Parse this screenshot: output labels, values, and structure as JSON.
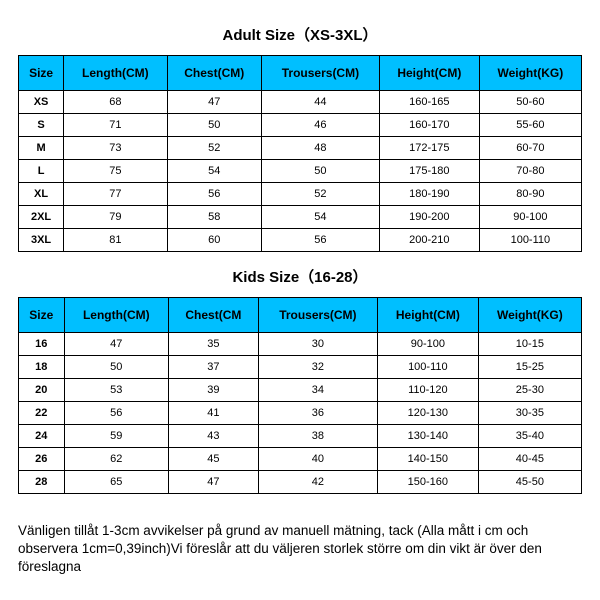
{
  "adult": {
    "title": "Adult Size（XS-3XL）",
    "columns": [
      "Size",
      "Length(CM)",
      "Chest(CM)",
      "Trousers(CM)",
      "Height(CM)",
      "Weight(KG)"
    ],
    "rows": [
      [
        "XS",
        "68",
        "47",
        "44",
        "160-165",
        "50-60"
      ],
      [
        "S",
        "71",
        "50",
        "46",
        "160-170",
        "55-60"
      ],
      [
        "M",
        "73",
        "52",
        "48",
        "172-175",
        "60-70"
      ],
      [
        "L",
        "75",
        "54",
        "50",
        "175-180",
        "70-80"
      ],
      [
        "XL",
        "77",
        "56",
        "52",
        "180-190",
        "80-90"
      ],
      [
        "2XL",
        "79",
        "58",
        "54",
        "190-200",
        "90-100"
      ],
      [
        "3XL",
        "81",
        "60",
        "56",
        "200-210",
        "100-110"
      ]
    ]
  },
  "kids": {
    "title": "Kids Size（16-28）",
    "columns": [
      "Size",
      "Length(CM)",
      "Chest(CM",
      "Trousers(CM)",
      "Height(CM)",
      "Weight(KG)"
    ],
    "rows": [
      [
        "16",
        "47",
        "35",
        "30",
        "90-100",
        "10-15"
      ],
      [
        "18",
        "50",
        "37",
        "32",
        "100-110",
        "15-25"
      ],
      [
        "20",
        "53",
        "39",
        "34",
        "110-120",
        "25-30"
      ],
      [
        "22",
        "56",
        "41",
        "36",
        "120-130",
        "30-35"
      ],
      [
        "24",
        "59",
        "43",
        "38",
        "130-140",
        "35-40"
      ],
      [
        "26",
        "62",
        "45",
        "40",
        "140-150",
        "40-45"
      ],
      [
        "28",
        "65",
        "47",
        "42",
        "150-160",
        "45-50"
      ]
    ]
  },
  "footer": {
    "text": "Vänligen tillåt 1-3cm avvikelser på grund av manuell mätning, tack (Alla mått i cm och observera 1cm=0,39inch)Vi föreslår att du väljeren storlek större om din vikt är över den föreslagna"
  },
  "style": {
    "header_bg": "#00bfff",
    "border_color": "#000000",
    "cell_bg": "#ffffff"
  }
}
